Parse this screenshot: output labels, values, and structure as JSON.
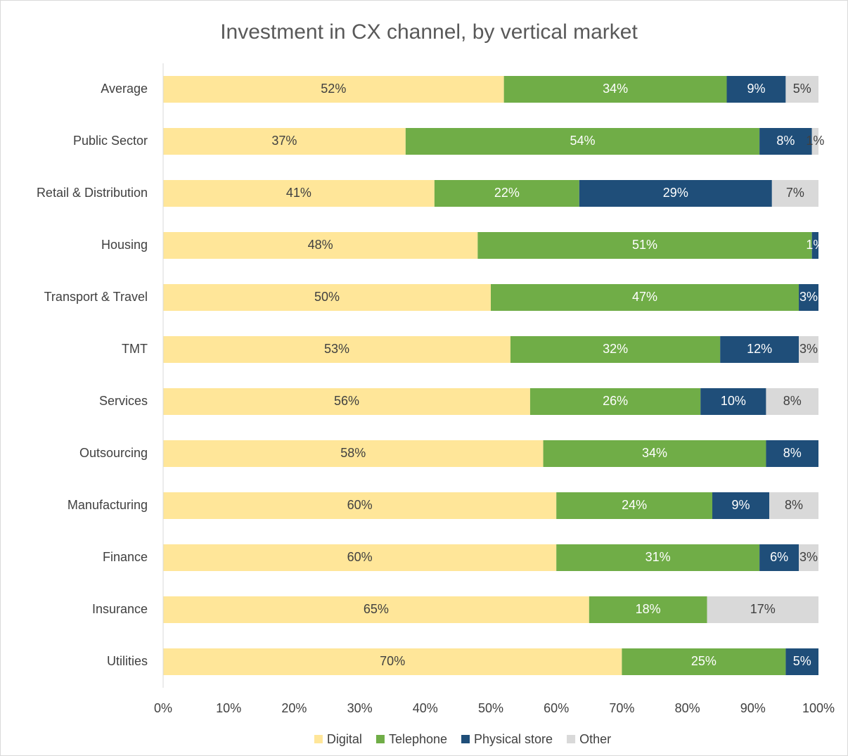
{
  "chart_data": {
    "type": "bar",
    "orientation": "horizontal",
    "stacked": true,
    "title": "Investment in CX channel, by vertical market",
    "categories": [
      "Average",
      "Public Sector",
      "Retail & Distribution",
      "Housing",
      "Transport & Travel",
      "TMT",
      "Services",
      "Outsourcing",
      "Manufacturing",
      "Finance",
      "Insurance",
      "Utilities"
    ],
    "series": [
      {
        "name": "Digital",
        "color": "#ffe699",
        "label_color": "#404040",
        "values": [
          52,
          37,
          41.4,
          48,
          50,
          53,
          56,
          58,
          60,
          60,
          65,
          70
        ],
        "value_labels": [
          "52%",
          "37%",
          "41%",
          "48%",
          "50%",
          "53%",
          "56%",
          "58%",
          "60%",
          "60%",
          "65%",
          "70%"
        ]
      },
      {
        "name": "Telephone",
        "color": "#70ad47",
        "label_color": "#ffffff",
        "values": [
          34,
          54,
          22.1,
          51,
          47,
          32,
          26,
          34,
          23.8,
          31,
          18,
          25
        ],
        "value_labels": [
          "34%",
          "54%",
          "22%",
          "51%",
          "47%",
          "32%",
          "26%",
          "34%",
          "24%",
          "31%",
          "18%",
          "25%"
        ]
      },
      {
        "name": "Physical store",
        "color": "#1f4e79",
        "label_color": "#ffffff",
        "values": [
          9,
          8,
          29.4,
          1,
          3,
          12,
          10,
          8,
          8.7,
          6,
          null,
          5
        ],
        "value_labels": [
          "9%",
          "8%",
          "29%",
          "1%",
          "3%",
          "12%",
          "10%",
          "8%",
          "9%",
          "6%",
          null,
          "5%"
        ]
      },
      {
        "name": "Other",
        "color": "#d9d9d9",
        "label_color": "#404040",
        "values": [
          5,
          1,
          7.1,
          null,
          null,
          3,
          8,
          null,
          7.5,
          3,
          17,
          null
        ],
        "value_labels": [
          "5%",
          "1%",
          "7%",
          null,
          null,
          "3%",
          "8%",
          null,
          "8%",
          "3%",
          "17%",
          null
        ]
      }
    ],
    "xlim": [
      0,
      100
    ],
    "xticks": [
      {
        "value": 0,
        "label": "0%"
      },
      {
        "value": 10,
        "label": "10%"
      },
      {
        "value": 20,
        "label": "20%"
      },
      {
        "value": 30,
        "label": "30%"
      },
      {
        "value": 40,
        "label": "40%"
      },
      {
        "value": 50,
        "label": "50%"
      },
      {
        "value": 60,
        "label": "60%"
      },
      {
        "value": 70,
        "label": "70%"
      },
      {
        "value": 80,
        "label": "80%"
      },
      {
        "value": 90,
        "label": "90%"
      },
      {
        "value": 100,
        "label": "100%"
      }
    ],
    "grid": false,
    "legend": "bottom"
  }
}
